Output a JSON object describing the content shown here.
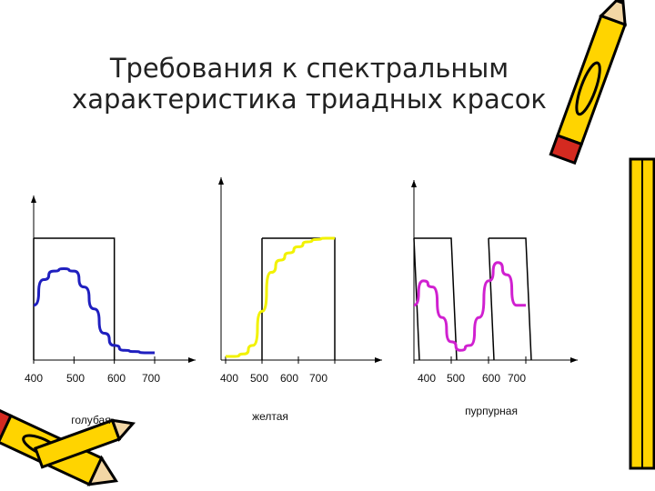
{
  "title": {
    "line1": "Требования к спектральным",
    "line2": "характеристика триадных красок"
  },
  "chart_data": [
    {
      "type": "line",
      "caption": "голубая",
      "x_tick_labels": [
        "400",
        "500",
        "600",
        "700"
      ],
      "series": [
        {
          "color": "#1f1fbf",
          "x": [
            400,
            425,
            450,
            475,
            500,
            525,
            550,
            575,
            600,
            625,
            650,
            675,
            700
          ],
          "values": [
            0.45,
            0.66,
            0.73,
            0.75,
            0.73,
            0.6,
            0.42,
            0.22,
            0.12,
            0.08,
            0.07,
            0.06,
            0.06
          ]
        }
      ],
      "ideal_band": {
        "x": [
          400,
          600
        ],
        "level": 1.0
      }
    },
    {
      "type": "line",
      "caption": "желтая",
      "x_tick_labels": [
        "400",
        "500",
        "600",
        "700"
      ],
      "series": [
        {
          "color": "#f2f200",
          "x": [
            400,
            425,
            450,
            475,
            500,
            525,
            550,
            575,
            600,
            625,
            650,
            675,
            700
          ],
          "values": [
            0.03,
            0.03,
            0.05,
            0.12,
            0.4,
            0.72,
            0.82,
            0.88,
            0.93,
            0.97,
            0.99,
            1.0,
            1.0
          ]
        }
      ],
      "ideal_band": {
        "x": [
          500,
          700
        ],
        "level": 1.0
      }
    },
    {
      "type": "line",
      "caption": "пурпурная",
      "x_tick_labels": [
        "400",
        "500",
        "600",
        "700"
      ],
      "series": [
        {
          "color": "#d020d0",
          "x": [
            400,
            425,
            450,
            475,
            500,
            525,
            550,
            575,
            600,
            625,
            650,
            675,
            700
          ],
          "values": [
            0.45,
            0.65,
            0.6,
            0.35,
            0.15,
            0.08,
            0.12,
            0.35,
            0.65,
            0.8,
            0.7,
            0.45,
            0.45
          ]
        }
      ],
      "ideal_band": {
        "x": [
          [
            400,
            500
          ],
          [
            600,
            700
          ]
        ],
        "level": 1.0
      }
    }
  ],
  "decor": {
    "pencil_top_right": "pencil-icon",
    "pencil_right": "pencil-icon",
    "pencil_bottom_left": "pencil-icon"
  }
}
